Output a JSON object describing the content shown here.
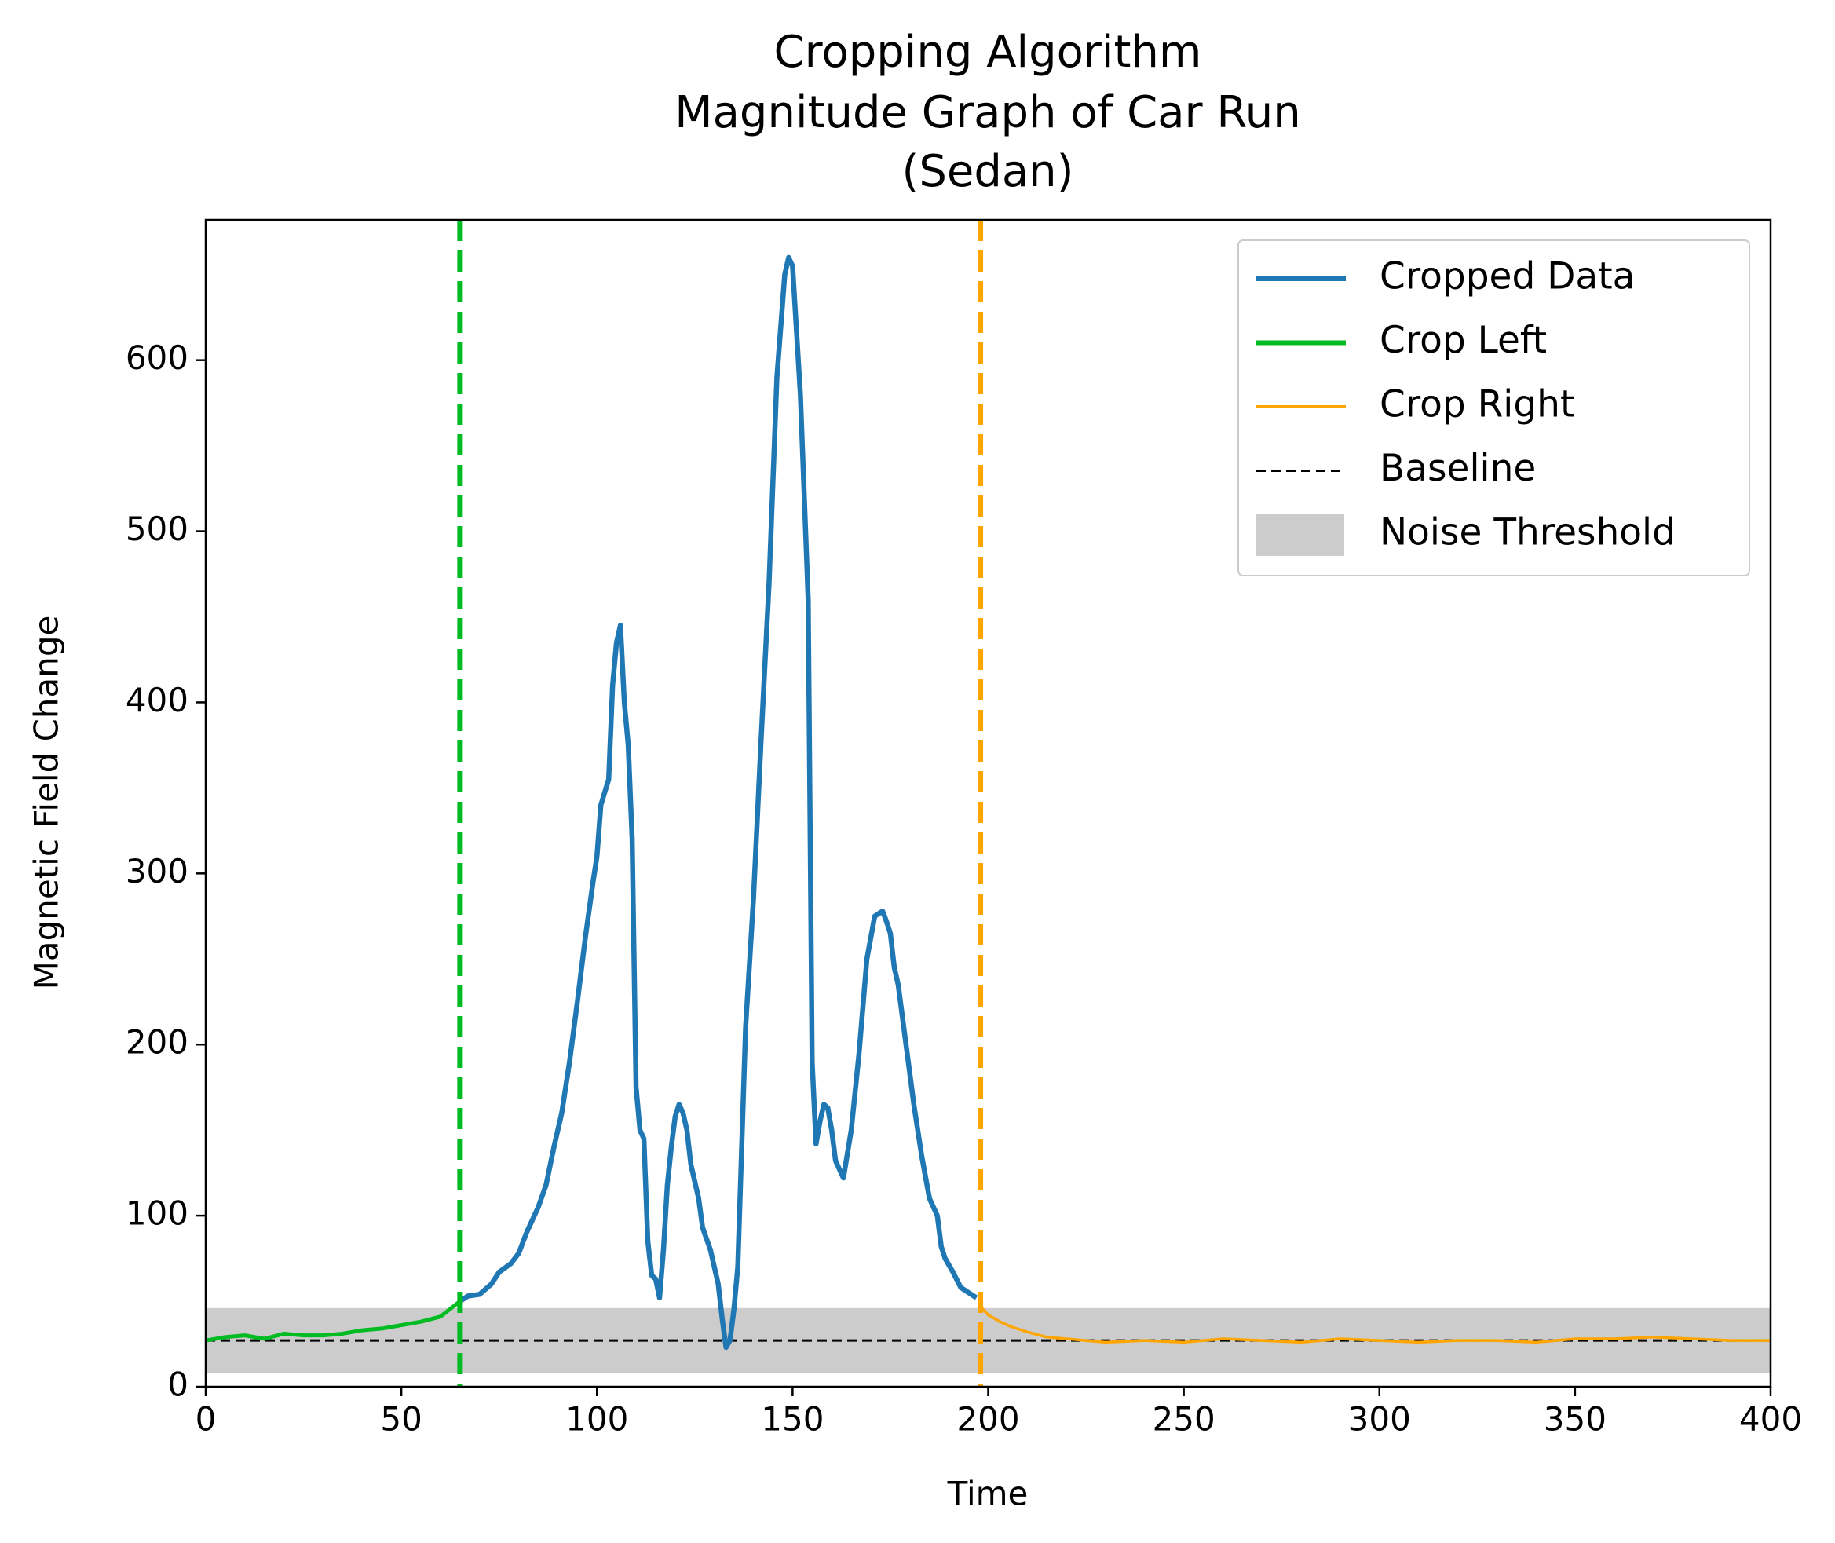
{
  "chart_data": {
    "type": "line",
    "title": [
      "Cropping Algorithm",
      "Magnitude Graph of Car Run",
      "(Sedan)"
    ],
    "x_label": "Time",
    "y_label": "Magnetic Field Change",
    "xlim": [
      0,
      400
    ],
    "ylim": [
      0,
      682
    ],
    "xticks": [
      0,
      50,
      100,
      150,
      200,
      250,
      300,
      350,
      400
    ],
    "yticks": [
      0,
      100,
      200,
      300,
      400,
      500,
      600
    ],
    "legend": "upper right",
    "series": [
      {
        "name": "Cropped Data",
        "color": "#1f77b4",
        "x": [
          65,
          67,
          70,
          73,
          75,
          78,
          80,
          82,
          85,
          87,
          89,
          91,
          93,
          95,
          97,
          99,
          100,
          101,
          103,
          104,
          105,
          106,
          107,
          108,
          109,
          110,
          111,
          112,
          113,
          114,
          115,
          116,
          117,
          118,
          119,
          120,
          121,
          122,
          123,
          124,
          126,
          127,
          129,
          131,
          132,
          133,
          134,
          135,
          136,
          137,
          138,
          140,
          142,
          144,
          146,
          148,
          149,
          150,
          152,
          154,
          155,
          156,
          157,
          158,
          159,
          160,
          161,
          163,
          165,
          167,
          169,
          171,
          173,
          174,
          175,
          176,
          177,
          179,
          181,
          183,
          185,
          187,
          188,
          189,
          191,
          193,
          195,
          197
        ],
        "values": [
          50,
          53,
          54,
          60,
          67,
          72,
          78,
          90,
          105,
          118,
          140,
          160,
          190,
          225,
          262,
          295,
          310,
          340,
          355,
          410,
          435,
          445,
          400,
          375,
          320,
          175,
          150,
          145,
          85,
          65,
          63,
          52,
          80,
          118,
          140,
          158,
          165,
          160,
          150,
          130,
          110,
          93,
          80,
          60,
          40,
          23,
          27,
          45,
          70,
          140,
          210,
          285,
          380,
          470,
          590,
          650,
          660,
          655,
          580,
          460,
          190,
          142,
          155,
          165,
          163,
          150,
          132,
          122,
          150,
          195,
          250,
          275,
          278,
          272,
          265,
          245,
          235,
          200,
          165,
          135,
          110,
          100,
          82,
          75,
          67,
          58,
          55,
          52
        ]
      },
      {
        "name": "Crop Left",
        "color": "#00bb22",
        "vline": 65,
        "x": [
          0,
          5,
          10,
          15,
          20,
          25,
          30,
          35,
          40,
          45,
          50,
          55,
          60,
          65
        ],
        "values": [
          27,
          29,
          30,
          28,
          31,
          30,
          30,
          31,
          33,
          34,
          36,
          38,
          41,
          50
        ]
      },
      {
        "name": "Crop Right",
        "color": "#ffa500",
        "vline": 198,
        "x": [
          198,
          200,
          203,
          206,
          210,
          215,
          220,
          230,
          240,
          250,
          260,
          270,
          280,
          290,
          300,
          310,
          320,
          330,
          340,
          350,
          360,
          370,
          380,
          390,
          400
        ],
        "values": [
          47,
          42,
          38,
          35,
          32,
          29,
          28,
          26,
          27,
          26,
          28,
          27,
          26,
          28,
          27,
          26,
          27,
          27,
          26,
          28,
          28,
          29,
          28,
          27,
          27
        ]
      }
    ],
    "baseline": {
      "name": "Baseline",
      "value": 27,
      "color": "#000000"
    },
    "band": {
      "name": "Noise Threshold",
      "range": [
        8,
        46
      ],
      "color": "#cccccc"
    }
  }
}
